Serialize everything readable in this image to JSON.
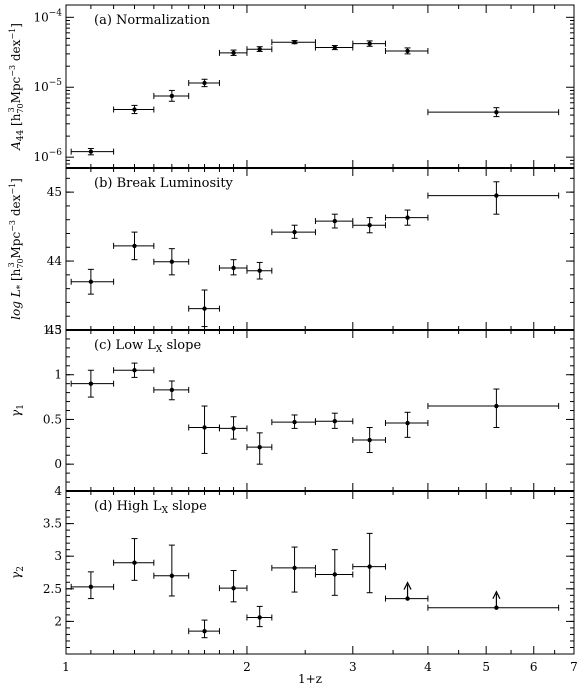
{
  "chart_data": [
    {
      "type": "scatter",
      "panel_label": "(a) Normalization",
      "ylabel_main": "A",
      "ylabel_sub": "44",
      "ylabel_units": "[h",
      "ylabel_units_sub": "70",
      "ylabel_units_sup": "3",
      "ylabel_units_rest": " Mpc",
      "ylabel_units_sup2": "−3",
      "ylabel_units_rest2": " dex",
      "ylabel_units_sup3": "−1",
      "ylabel_units_end": "]",
      "yscale": "log",
      "ylim": [
        7e-07,
        0.00015
      ],
      "yticks": [
        {
          "value": 1e-06,
          "mant": "10",
          "exp": "−6"
        },
        {
          "value": 1e-05,
          "mant": "10",
          "exp": "−5"
        },
        {
          "value": 0.0001,
          "mant": "10",
          "exp": "−4"
        }
      ],
      "points": [
        {
          "x": 1.1,
          "xlo": 1.02,
          "xhi": 1.2,
          "y": 1.2e-06,
          "ylo": 1.08e-06,
          "yhi": 1.33e-06
        },
        {
          "x": 1.3,
          "xlo": 1.2,
          "xhi": 1.4,
          "y": 4.8e-06,
          "ylo": 4.2e-06,
          "yhi": 5.5e-06
        },
        {
          "x": 1.5,
          "xlo": 1.4,
          "xhi": 1.6,
          "y": 7.5e-06,
          "ylo": 6.3e-06,
          "yhi": 9e-06
        },
        {
          "x": 1.7,
          "xlo": 1.6,
          "xhi": 1.8,
          "y": 1.15e-05,
          "ylo": 1.02e-05,
          "yhi": 1.3e-05
        },
        {
          "x": 1.9,
          "xlo": 1.8,
          "xhi": 2.0,
          "y": 3.1e-05,
          "ylo": 2.85e-05,
          "yhi": 3.4e-05
        },
        {
          "x": 2.1,
          "xlo": 2.0,
          "xhi": 2.2,
          "y": 3.5e-05,
          "ylo": 3.25e-05,
          "yhi": 3.8e-05
        },
        {
          "x": 2.4,
          "xlo": 2.2,
          "xhi": 2.6,
          "y": 4.4e-05,
          "ylo": 4.2e-05,
          "yhi": 4.65e-05
        },
        {
          "x": 2.8,
          "xlo": 2.6,
          "xhi": 3.0,
          "y": 3.7e-05,
          "ylo": 3.45e-05,
          "yhi": 3.95e-05
        },
        {
          "x": 3.2,
          "xlo": 3.0,
          "xhi": 3.4,
          "y": 4.2e-05,
          "ylo": 3.85e-05,
          "yhi": 4.6e-05
        },
        {
          "x": 3.7,
          "xlo": 3.4,
          "xhi": 4.0,
          "y": 3.3e-05,
          "ylo": 3e-05,
          "yhi": 3.65e-05
        },
        {
          "x": 5.2,
          "xlo": 4.0,
          "xhi": 6.6,
          "y": 4.4e-06,
          "ylo": 3.8e-06,
          "yhi": 5.1e-06
        }
      ]
    },
    {
      "type": "scatter",
      "panel_label": "(b) Break Luminosity",
      "ylabel_main": "log L",
      "ylabel_sub": "*",
      "ylabel_units": "[h",
      "ylabel_units_sub": "70",
      "ylabel_units_sup": "3",
      "ylabel_units_rest": " Mpc",
      "ylabel_units_sup2": "−3",
      "ylabel_units_rest2": " dex",
      "ylabel_units_sup3": "−1",
      "ylabel_units_end": "]",
      "yscale": "linear",
      "ylim": [
        43,
        45.35
      ],
      "yticks": [
        {
          "value": 43,
          "label": "43"
        },
        {
          "value": 44,
          "label": "44"
        },
        {
          "value": 45,
          "label": "45"
        }
      ],
      "points": [
        {
          "x": 1.1,
          "xlo": 1.02,
          "xhi": 1.2,
          "y": 43.7,
          "ylo": 43.52,
          "yhi": 43.88
        },
        {
          "x": 1.3,
          "xlo": 1.2,
          "xhi": 1.4,
          "y": 44.22,
          "ylo": 44.02,
          "yhi": 44.42
        },
        {
          "x": 1.5,
          "xlo": 1.4,
          "xhi": 1.6,
          "y": 43.99,
          "ylo": 43.8,
          "yhi": 44.18
        },
        {
          "x": 1.7,
          "xlo": 1.6,
          "xhi": 1.8,
          "y": 43.31,
          "ylo": 43.05,
          "yhi": 43.58
        },
        {
          "x": 1.9,
          "xlo": 1.8,
          "xhi": 2.0,
          "y": 43.9,
          "ylo": 43.8,
          "yhi": 44.02
        },
        {
          "x": 2.1,
          "xlo": 2.0,
          "xhi": 2.2,
          "y": 43.86,
          "ylo": 43.74,
          "yhi": 43.98
        },
        {
          "x": 2.4,
          "xlo": 2.2,
          "xhi": 2.6,
          "y": 44.42,
          "ylo": 44.33,
          "yhi": 44.52
        },
        {
          "x": 2.8,
          "xlo": 2.6,
          "xhi": 3.0,
          "y": 44.58,
          "ylo": 44.48,
          "yhi": 44.68
        },
        {
          "x": 3.2,
          "xlo": 3.0,
          "xhi": 3.4,
          "y": 44.52,
          "ylo": 44.41,
          "yhi": 44.63
        },
        {
          "x": 3.7,
          "xlo": 3.4,
          "xhi": 4.0,
          "y": 44.63,
          "ylo": 44.52,
          "yhi": 44.74
        },
        {
          "x": 5.2,
          "xlo": 4.0,
          "xhi": 6.6,
          "y": 44.95,
          "ylo": 44.68,
          "yhi": 45.15
        }
      ]
    },
    {
      "type": "scatter",
      "panel_label_main": "(c) Low L",
      "panel_label_sub": "X",
      "panel_label_end": " slope",
      "ylabel_main": "γ",
      "ylabel_sub": "1",
      "yscale": "linear",
      "ylim": [
        -0.3,
        1.5
      ],
      "yticks": [
        {
          "value": 0,
          "label": "0"
        },
        {
          "value": 0.5,
          "label": "0.5"
        },
        {
          "value": 1,
          "label": "1"
        },
        {
          "value": 1.5,
          "label": "1.5"
        }
      ],
      "points": [
        {
          "x": 1.1,
          "xlo": 1.02,
          "xhi": 1.2,
          "y": 0.9,
          "ylo": 0.75,
          "yhi": 1.05
        },
        {
          "x": 1.3,
          "xlo": 1.2,
          "xhi": 1.4,
          "y": 1.05,
          "ylo": 0.97,
          "yhi": 1.13
        },
        {
          "x": 1.5,
          "xlo": 1.4,
          "xhi": 1.6,
          "y": 0.83,
          "ylo": 0.72,
          "yhi": 0.93
        },
        {
          "x": 1.7,
          "xlo": 1.6,
          "xhi": 1.8,
          "y": 0.41,
          "ylo": 0.12,
          "yhi": 0.65
        },
        {
          "x": 1.9,
          "xlo": 1.8,
          "xhi": 2.0,
          "y": 0.4,
          "ylo": 0.28,
          "yhi": 0.53
        },
        {
          "x": 2.1,
          "xlo": 2.0,
          "xhi": 2.2,
          "y": 0.19,
          "ylo": 0.0,
          "yhi": 0.35
        },
        {
          "x": 2.4,
          "xlo": 2.2,
          "xhi": 2.6,
          "y": 0.47,
          "ylo": 0.4,
          "yhi": 0.55
        },
        {
          "x": 2.8,
          "xlo": 2.6,
          "xhi": 3.0,
          "y": 0.48,
          "ylo": 0.4,
          "yhi": 0.57
        },
        {
          "x": 3.2,
          "xlo": 3.0,
          "xhi": 3.4,
          "y": 0.27,
          "ylo": 0.13,
          "yhi": 0.41
        },
        {
          "x": 3.7,
          "xlo": 3.4,
          "xhi": 4.0,
          "y": 0.46,
          "ylo": 0.3,
          "yhi": 0.58
        },
        {
          "x": 5.2,
          "xlo": 4.0,
          "xhi": 6.6,
          "y": 0.65,
          "ylo": 0.41,
          "yhi": 0.84
        }
      ]
    },
    {
      "type": "scatter",
      "panel_label_main": "(d) High L",
      "panel_label_sub": "X",
      "panel_label_end": " slope",
      "ylabel_main": "γ",
      "ylabel_sub": "2",
      "yscale": "linear",
      "ylim": [
        1.5,
        4.0
      ],
      "yticks": [
        {
          "value": 2,
          "label": "2"
        },
        {
          "value": 2.5,
          "label": "2.5"
        },
        {
          "value": 3,
          "label": "3"
        },
        {
          "value": 3.5,
          "label": "3.5"
        },
        {
          "value": 4,
          "label": "4"
        }
      ],
      "points": [
        {
          "x": 1.1,
          "xlo": 1.02,
          "xhi": 1.2,
          "y": 2.53,
          "ylo": 2.35,
          "yhi": 2.76
        },
        {
          "x": 1.3,
          "xlo": 1.2,
          "xhi": 1.4,
          "y": 2.9,
          "ylo": 2.63,
          "yhi": 3.27
        },
        {
          "x": 1.5,
          "xlo": 1.4,
          "xhi": 1.6,
          "y": 2.7,
          "ylo": 2.39,
          "yhi": 3.17
        },
        {
          "x": 1.7,
          "xlo": 1.6,
          "xhi": 1.8,
          "y": 1.85,
          "ylo": 1.75,
          "yhi": 2.02
        },
        {
          "x": 1.9,
          "xlo": 1.8,
          "xhi": 2.0,
          "y": 2.51,
          "ylo": 2.3,
          "yhi": 2.78
        },
        {
          "x": 2.1,
          "xlo": 2.0,
          "xhi": 2.2,
          "y": 2.06,
          "ylo": 1.92,
          "yhi": 2.23
        },
        {
          "x": 2.4,
          "xlo": 2.2,
          "xhi": 2.6,
          "y": 2.82,
          "ylo": 2.45,
          "yhi": 3.14
        },
        {
          "x": 2.8,
          "xlo": 2.6,
          "xhi": 3.0,
          "y": 2.72,
          "ylo": 2.4,
          "yhi": 3.1
        },
        {
          "x": 3.2,
          "xlo": 3.0,
          "xhi": 3.4,
          "y": 2.84,
          "ylo": 2.44,
          "yhi": 3.35
        },
        {
          "x": 3.7,
          "xlo": 3.4,
          "xhi": 4.0,
          "y": 2.35,
          "lower_limit": true
        },
        {
          "x": 5.2,
          "xlo": 4.0,
          "xhi": 6.6,
          "y": 2.21,
          "lower_limit": true
        }
      ]
    }
  ],
  "shared_x": {
    "xlabel": "1+z",
    "xscale": "log",
    "xlim": [
      1,
      7
    ],
    "xticks": [
      {
        "value": 1,
        "label": "1"
      },
      {
        "value": 2,
        "label": "2"
      },
      {
        "value": 3,
        "label": "3"
      },
      {
        "value": 4,
        "label": "4"
      },
      {
        "value": 5,
        "label": "5"
      },
      {
        "value": 6,
        "label": "6"
      },
      {
        "value": 7,
        "label": "7"
      }
    ],
    "minor_ticks": [
      1.1,
      1.2,
      1.3,
      1.4,
      1.5,
      1.6,
      1.7,
      1.8,
      1.9,
      2.5,
      3.5,
      4.5,
      5.5,
      6.5
    ]
  }
}
